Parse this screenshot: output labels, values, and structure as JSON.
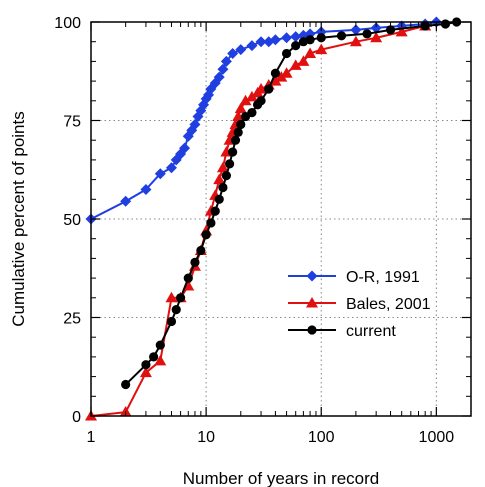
{
  "chart_data": {
    "type": "line",
    "title": "",
    "xlabel": "Number of years in record",
    "ylabel": "Cumulative percent of points",
    "xscale": "log",
    "xlim": [
      1,
      2000
    ],
    "ylim": [
      0,
      100
    ],
    "x_ticks": [
      {
        "value": 1,
        "label": "1"
      },
      {
        "value": 10,
        "label": "10"
      },
      {
        "value": 100,
        "label": "100"
      },
      {
        "value": 1000,
        "label": "1000"
      }
    ],
    "y_ticks": [
      {
        "value": 0,
        "label": "0"
      },
      {
        "value": 25,
        "label": "25"
      },
      {
        "value": 50,
        "label": "50"
      },
      {
        "value": 75,
        "label": "75"
      },
      {
        "value": 100,
        "label": "100"
      }
    ],
    "grid": true,
    "legend_position": "right-center",
    "series": [
      {
        "name": "O-R, 1991",
        "color": "#1f3fe0",
        "marker": "diamond",
        "x": [
          1,
          2,
          3,
          4,
          5,
          5.5,
          6,
          6.5,
          7,
          7.5,
          8,
          8.5,
          9,
          9.5,
          10,
          10.5,
          11,
          12,
          13,
          14,
          15,
          17,
          20,
          25,
          30,
          35,
          40,
          50,
          60,
          70,
          80,
          100,
          200,
          300,
          500,
          800,
          1000
        ],
        "y": [
          50,
          54.5,
          57.5,
          61.5,
          63,
          65,
          66.5,
          68,
          71,
          72.5,
          74,
          76,
          77.5,
          79,
          80.5,
          81.5,
          83,
          84.5,
          86,
          88,
          90,
          92,
          93,
          94,
          95,
          95,
          95.5,
          96,
          96.3,
          96.6,
          97,
          97.5,
          98,
          98.5,
          99,
          99.5,
          100
        ]
      },
      {
        "name": "Bales, 2001",
        "color": "#e01010",
        "marker": "triangle",
        "x": [
          1,
          2,
          3,
          4,
          5,
          6,
          7,
          8,
          9,
          10,
          11,
          12,
          13,
          14,
          15,
          16,
          17,
          18,
          19,
          20,
          22,
          25,
          28,
          30,
          35,
          40,
          45,
          50,
          60,
          70,
          80,
          100,
          200,
          300,
          500,
          800
        ],
        "y": [
          0,
          1,
          11,
          14,
          30,
          30,
          33,
          38,
          42,
          47,
          52,
          56,
          60,
          63,
          67,
          70,
          72,
          74,
          76,
          78,
          80,
          81,
          82,
          83,
          84,
          85,
          86,
          87,
          89,
          90,
          92,
          93,
          95,
          96,
          97.5,
          99
        ]
      },
      {
        "name": "current",
        "color": "#000000",
        "marker": "circle",
        "x": [
          2,
          3,
          3.5,
          4,
          5,
          5.5,
          6,
          7,
          8,
          9,
          10,
          11,
          12,
          13,
          14,
          15,
          16,
          17,
          18,
          19,
          20,
          22,
          25,
          28,
          30,
          35,
          40,
          50,
          60,
          70,
          80,
          100,
          150,
          250,
          400,
          800,
          1200,
          1500
        ],
        "y": [
          8,
          13,
          15,
          18,
          24,
          27,
          30,
          35,
          39,
          42,
          46,
          49,
          52,
          55,
          58,
          61,
          64,
          67,
          70,
          72,
          74,
          76,
          77,
          79,
          80,
          83,
          87,
          92,
          94,
          95,
          95.5,
          96,
          96.5,
          97,
          98,
          99,
          99.5,
          100
        ]
      }
    ]
  }
}
